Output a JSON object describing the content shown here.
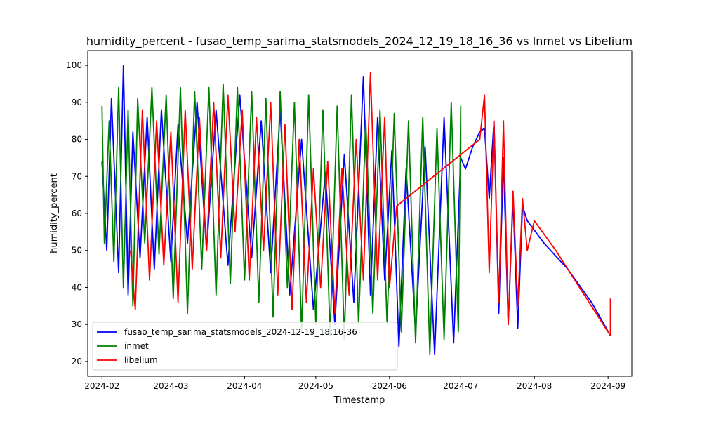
{
  "chart_data": {
    "type": "line",
    "title": "humidity_percent - fusao_temp_sarima_statsmodels_2024_12_19_18_16_36 vs Inmet vs Libelium",
    "xlabel": "Timestamp",
    "ylabel": "humidity_percent",
    "xlim": [
      "2024-01-26",
      "2024-09-11"
    ],
    "ylim": [
      16,
      104
    ],
    "x_ticks": [
      "2024-02",
      "2024-03",
      "2024-04",
      "2024-05",
      "2024-06",
      "2024-07",
      "2024-08",
      "2024-09"
    ],
    "y_ticks": [
      20,
      30,
      40,
      50,
      60,
      70,
      80,
      90,
      100
    ],
    "grid": false,
    "legend_position": "lower-left",
    "series": [
      {
        "name": "fusao_temp_sarima_statsmodels_2024-12-19_18:16-36",
        "color": "#0000ff",
        "x": [
          "2024-02-01",
          "2024-02-03",
          "2024-02-05",
          "2024-02-08",
          "2024-02-10",
          "2024-02-12",
          "2024-02-14",
          "2024-02-17",
          "2024-02-20",
          "2024-02-23",
          "2024-02-26",
          "2024-03-01",
          "2024-03-04",
          "2024-03-08",
          "2024-03-12",
          "2024-03-16",
          "2024-03-20",
          "2024-03-25",
          "2024-03-30",
          "2024-04-04",
          "2024-04-08",
          "2024-04-12",
          "2024-04-16",
          "2024-04-20",
          "2024-04-25",
          "2024-04-30",
          "2024-05-05",
          "2024-05-09",
          "2024-05-13",
          "2024-05-17",
          "2024-05-21",
          "2024-05-24",
          "2024-05-27",
          "2024-05-30",
          "2024-06-02",
          "2024-06-05",
          "2024-06-08",
          "2024-06-12",
          "2024-06-16",
          "2024-06-20",
          "2024-06-24",
          "2024-06-28",
          "2024-07-01",
          "2024-07-03",
          "2024-07-06",
          "2024-07-09",
          "2024-07-11",
          "2024-07-13",
          "2024-07-15",
          "2024-07-17",
          "2024-07-19",
          "2024-07-21",
          "2024-07-23",
          "2024-07-25",
          "2024-07-27",
          "2024-07-29",
          "2024-08-05",
          "2024-08-15",
          "2024-08-25",
          "2024-09-02"
        ],
        "values": [
          74,
          50,
          91,
          44,
          100,
          38,
          82,
          48,
          86,
          45,
          88,
          47,
          84,
          52,
          90,
          50,
          88,
          46,
          92,
          48,
          85,
          44,
          88,
          38,
          80,
          34,
          71,
          30,
          76,
          36,
          97,
          38,
          86,
          42,
          77,
          24,
          72,
          28,
          78,
          22,
          86,
          25,
          75,
          72,
          78,
          82,
          83,
          64,
          85,
          33,
          75,
          30,
          64,
          29,
          62,
          58,
          52,
          45,
          36,
          27
        ]
      },
      {
        "name": "inmet",
        "color": "#008000",
        "x": [
          "2024-02-01",
          "2024-02-02",
          "2024-02-04",
          "2024-02-06",
          "2024-02-08",
          "2024-02-10",
          "2024-02-12",
          "2024-02-14",
          "2024-02-16",
          "2024-02-19",
          "2024-02-22",
          "2024-02-25",
          "2024-02-28",
          "2024-03-02",
          "2024-03-05",
          "2024-03-08",
          "2024-03-11",
          "2024-03-14",
          "2024-03-17",
          "2024-03-20",
          "2024-03-23",
          "2024-03-26",
          "2024-03-29",
          "2024-04-01",
          "2024-04-04",
          "2024-04-07",
          "2024-04-10",
          "2024-04-13",
          "2024-04-16",
          "2024-04-19",
          "2024-04-22",
          "2024-04-25",
          "2024-04-28",
          "2024-05-01",
          "2024-05-04",
          "2024-05-07",
          "2024-05-10",
          "2024-05-13",
          "2024-05-16",
          "2024-05-19",
          "2024-05-22",
          "2024-05-25",
          "2024-05-28",
          "2024-05-31",
          "2024-06-03",
          "2024-06-06",
          "2024-06-09",
          "2024-06-12",
          "2024-06-15",
          "2024-06-18",
          "2024-06-21",
          "2024-06-24",
          "2024-06-27",
          "2024-06-30",
          "2024-07-01",
          "2024-07-01"
        ],
        "values": [
          89,
          52,
          85,
          47,
          94,
          40,
          88,
          35,
          91,
          52,
          94,
          49,
          92,
          37,
          94,
          33,
          93,
          45,
          94,
          38,
          95,
          41,
          94,
          42,
          93,
          36,
          91,
          32,
          93,
          40,
          90,
          28,
          92,
          30,
          88,
          27,
          89,
          26,
          92,
          30,
          85,
          33,
          88,
          30,
          87,
          28,
          85,
          25,
          86,
          22,
          83,
          26,
          90,
          28,
          89,
          74
        ]
      },
      {
        "name": "libelium",
        "color": "#ff0000",
        "x": [
          "2024-02-13",
          "2024-02-15",
          "2024-02-18",
          "2024-02-21",
          "2024-02-24",
          "2024-02-27",
          "2024-03-01",
          "2024-03-04",
          "2024-03-07",
          "2024-03-10",
          "2024-03-13",
          "2024-03-16",
          "2024-03-19",
          "2024-03-22",
          "2024-03-25",
          "2024-03-28",
          "2024-03-31",
          "2024-04-03",
          "2024-04-06",
          "2024-04-09",
          "2024-04-12",
          "2024-04-15",
          "2024-04-18",
          "2024-04-21",
          "2024-04-24",
          "2024-04-27",
          "2024-04-30",
          "2024-05-03",
          "2024-05-06",
          "2024-05-09",
          "2024-05-12",
          "2024-05-15",
          "2024-05-18",
          "2024-05-21",
          "2024-05-24",
          "2024-05-27",
          "2024-05-30",
          "2024-06-01",
          "2024-06-04",
          "2024-07-09",
          "2024-07-11",
          "2024-07-13",
          "2024-07-15",
          "2024-07-17",
          "2024-07-19",
          "2024-07-21",
          "2024-07-23",
          "2024-07-25",
          "2024-07-27",
          "2024-07-29",
          "2024-08-01",
          "2024-08-10",
          "2024-08-20",
          "2024-09-02",
          "2024-09-02"
        ],
        "values": [
          50,
          34,
          88,
          42,
          85,
          46,
          82,
          36,
          88,
          45,
          86,
          50,
          90,
          48,
          92,
          55,
          88,
          42,
          86,
          50,
          90,
          38,
          84,
          34,
          80,
          36,
          72,
          40,
          74,
          33,
          72,
          38,
          80,
          42,
          98,
          42,
          86,
          40,
          62,
          80,
          92,
          44,
          85,
          36,
          85,
          30,
          66,
          35,
          64,
          50,
          58,
          50,
          40,
          27,
          37
        ]
      }
    ]
  }
}
